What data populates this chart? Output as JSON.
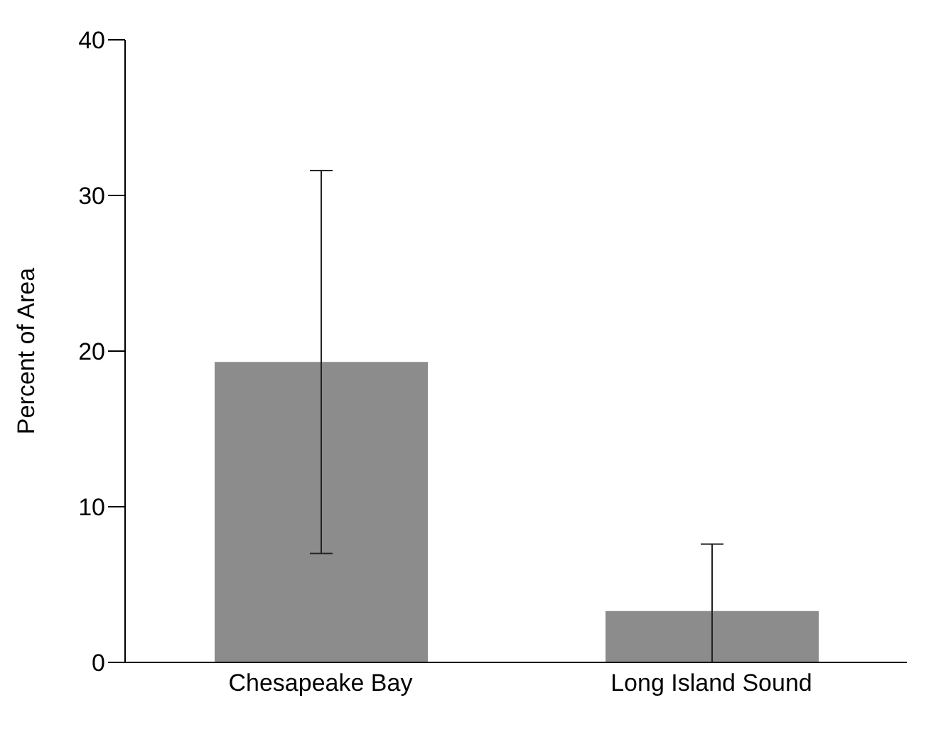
{
  "chart_data": {
    "type": "bar",
    "ylabel": "Percent of Area",
    "categories": [
      "Chesapeake Bay",
      "Long Island Sound"
    ],
    "values": [
      19.3,
      3.3
    ],
    "errors": [
      [
        7.0,
        31.6
      ],
      [
        0,
        7.6
      ]
    ],
    "color": "#8c8c8c",
    "ylim": [
      0,
      40
    ],
    "yticks": [
      0,
      10,
      20,
      30,
      40
    ],
    "grid": false
  }
}
